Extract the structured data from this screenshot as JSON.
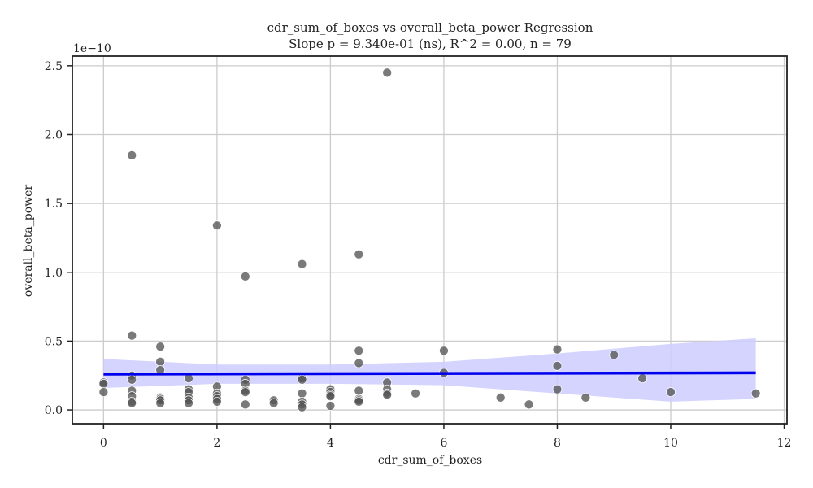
{
  "chart_data": {
    "type": "scatter",
    "title": "cdr_sum_of_boxes vs overall_beta_power Regression",
    "subtitle": "Slope p = 9.340e-01 (ns), R^2 = 0.00, n = 79",
    "xlabel": "cdr_sum_of_boxes",
    "ylabel": "overall_beta_power",
    "y_offset_label": "1e−10",
    "xlim": [
      -0.55,
      12.05
    ],
    "ylim": [
      -0.1,
      2.57
    ],
    "xticks": [
      0,
      2,
      4,
      6,
      8,
      10,
      12
    ],
    "yticks": [
      0.0,
      0.5,
      1.0,
      1.5,
      2.0,
      2.5
    ],
    "xtick_labels": [
      "0",
      "2",
      "4",
      "6",
      "8",
      "10",
      "12"
    ],
    "ytick_labels": [
      "0.0",
      "0.5",
      "1.0",
      "1.5",
      "2.0",
      "2.5"
    ],
    "grid": true,
    "colors": {
      "points": "#555555",
      "fit": "#0000ee",
      "band": "#ccccff",
      "grid": "#cccccc",
      "axis": "#222222"
    },
    "points": [
      [
        0,
        0.2
      ],
      [
        0,
        0.19
      ],
      [
        0,
        0.13
      ],
      [
        0.5,
        1.85
      ],
      [
        0.5,
        0.54
      ],
      [
        0.5,
        0.25
      ],
      [
        0.5,
        0.22
      ],
      [
        0.5,
        0.14
      ],
      [
        0.5,
        0.1
      ],
      [
        0.5,
        0.06
      ],
      [
        0.5,
        0.05
      ],
      [
        1,
        0.46
      ],
      [
        1,
        0.35
      ],
      [
        1,
        0.29
      ],
      [
        1,
        0.09
      ],
      [
        1,
        0.08
      ],
      [
        1,
        0.07
      ],
      [
        1,
        0.05
      ],
      [
        1.5,
        0.23
      ],
      [
        1.5,
        0.15
      ],
      [
        1.5,
        0.13
      ],
      [
        1.5,
        0.09
      ],
      [
        1.5,
        0.07
      ],
      [
        1.5,
        0.05
      ],
      [
        2,
        1.34
      ],
      [
        2,
        0.17
      ],
      [
        2,
        0.12
      ],
      [
        2,
        0.1
      ],
      [
        2,
        0.08
      ],
      [
        2,
        0.06
      ],
      [
        2.5,
        0.97
      ],
      [
        2.5,
        0.22
      ],
      [
        2.5,
        0.19
      ],
      [
        2.5,
        0.14
      ],
      [
        2.5,
        0.13
      ],
      [
        2.5,
        0.04
      ],
      [
        3,
        0.07
      ],
      [
        3,
        0.05
      ],
      [
        3.5,
        1.06
      ],
      [
        3.5,
        0.23
      ],
      [
        3.5,
        0.22
      ],
      [
        3.5,
        0.12
      ],
      [
        3.5,
        0.06
      ],
      [
        3.5,
        0.04
      ],
      [
        3.5,
        0.02
      ],
      [
        4,
        0.15
      ],
      [
        4,
        0.13
      ],
      [
        4,
        0.11
      ],
      [
        4,
        0.1
      ],
      [
        4,
        0.03
      ],
      [
        4.5,
        1.13
      ],
      [
        4.5,
        0.43
      ],
      [
        4.5,
        0.34
      ],
      [
        4.5,
        0.14
      ],
      [
        4.5,
        0.08
      ],
      [
        4.5,
        0.07
      ],
      [
        4.5,
        0.06
      ],
      [
        5,
        2.45
      ],
      [
        5,
        0.2
      ],
      [
        5,
        0.15
      ],
      [
        5,
        0.12
      ],
      [
        5,
        0.11
      ],
      [
        5.5,
        0.12
      ],
      [
        6,
        0.43
      ],
      [
        6,
        0.27
      ],
      [
        7,
        0.09
      ],
      [
        7.5,
        0.04
      ],
      [
        8,
        0.44
      ],
      [
        8,
        0.32
      ],
      [
        8,
        0.15
      ],
      [
        8.5,
        0.09
      ],
      [
        9,
        0.4
      ],
      [
        9.5,
        0.23
      ],
      [
        10,
        0.13
      ],
      [
        11.5,
        0.12
      ]
    ],
    "regression": {
      "x": [
        0,
        11.5
      ],
      "y": [
        0.26,
        0.27
      ]
    },
    "confidence_band": {
      "x": [
        0,
        2,
        4,
        6,
        8,
        10,
        11.5
      ],
      "upper": [
        0.37,
        0.33,
        0.33,
        0.35,
        0.41,
        0.48,
        0.52
      ],
      "lower": [
        0.16,
        0.19,
        0.19,
        0.18,
        0.12,
        0.06,
        0.08
      ]
    }
  }
}
